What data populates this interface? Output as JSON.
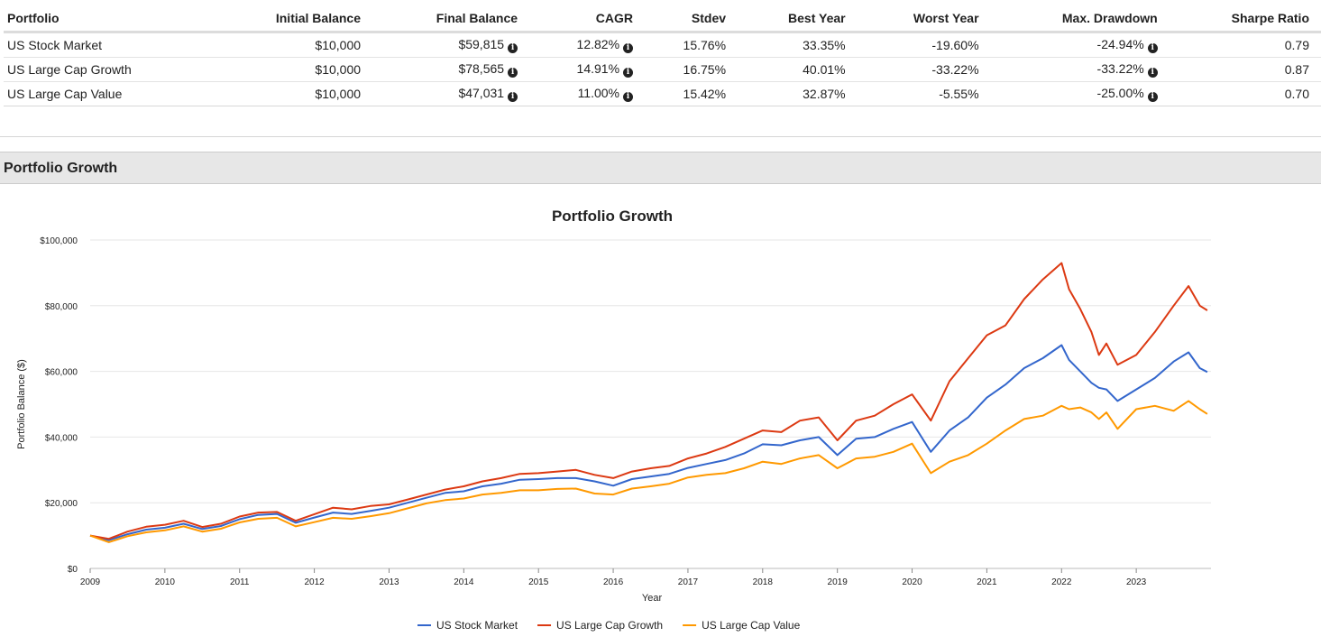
{
  "table": {
    "headers": [
      "Portfolio",
      "Initial Balance",
      "Final Balance",
      "CAGR",
      "Stdev",
      "Best Year",
      "Worst Year",
      "Max. Drawdown",
      "Sharpe Ratio"
    ],
    "rows": [
      {
        "portfolio": "US Stock Market",
        "initial": "$10,000",
        "final": "$59,815",
        "cagr": "12.82%",
        "stdev": "15.76%",
        "best": "33.35%",
        "worst": "-19.60%",
        "drawdown": "-24.94%",
        "sharpe": "0.79"
      },
      {
        "portfolio": "US Large Cap Growth",
        "initial": "$10,000",
        "final": "$78,565",
        "cagr": "14.91%",
        "stdev": "16.75%",
        "best": "40.01%",
        "worst": "-33.22%",
        "drawdown": "-33.22%",
        "sharpe": "0.87"
      },
      {
        "portfolio": "US Large Cap Value",
        "initial": "$10,000",
        "final": "$47,031",
        "cagr": "11.00%",
        "stdev": "15.42%",
        "best": "32.87%",
        "worst": "-5.55%",
        "drawdown": "-25.00%",
        "sharpe": "0.70"
      }
    ],
    "info_icon": "info-circle-icon"
  },
  "section": {
    "title": "Portfolio Growth"
  },
  "chart_data": {
    "type": "line",
    "title": "Portfolio Growth",
    "xlabel": "Year",
    "ylabel": "Portfolio Balance ($)",
    "xlim": [
      2009,
      2024
    ],
    "ylim": [
      0,
      100000
    ],
    "x_ticks": [
      "2009",
      "2010",
      "2011",
      "2012",
      "2013",
      "2014",
      "2015",
      "2016",
      "2017",
      "2018",
      "2019",
      "2020",
      "2021",
      "2022",
      "2023"
    ],
    "y_ticks": [
      "$0",
      "$20,000",
      "$40,000",
      "$60,000",
      "$80,000",
      "$100,000"
    ],
    "grid": true,
    "legend_position": "bottom",
    "series": [
      {
        "name": "US Stock Market",
        "color": "#3366cc",
        "points": [
          [
            2009.0,
            10000
          ],
          [
            2009.25,
            8600
          ],
          [
            2009.5,
            10400
          ],
          [
            2009.75,
            11800
          ],
          [
            2010.0,
            12400
          ],
          [
            2010.25,
            13600
          ],
          [
            2010.5,
            12000
          ],
          [
            2010.75,
            12900
          ],
          [
            2011.0,
            15000
          ],
          [
            2011.25,
            16300
          ],
          [
            2011.5,
            16600
          ],
          [
            2011.75,
            13900
          ],
          [
            2012.0,
            15500
          ],
          [
            2012.25,
            17000
          ],
          [
            2012.5,
            16600
          ],
          [
            2012.75,
            17500
          ],
          [
            2013.0,
            18500
          ],
          [
            2013.25,
            20000
          ],
          [
            2013.5,
            21500
          ],
          [
            2013.75,
            23000
          ],
          [
            2014.0,
            23500
          ],
          [
            2014.25,
            25000
          ],
          [
            2014.5,
            25800
          ],
          [
            2014.75,
            27000
          ],
          [
            2015.0,
            27200
          ],
          [
            2015.25,
            27500
          ],
          [
            2015.5,
            27500
          ],
          [
            2015.75,
            26500
          ],
          [
            2016.0,
            25200
          ],
          [
            2016.25,
            27200
          ],
          [
            2016.5,
            28000
          ],
          [
            2016.75,
            28800
          ],
          [
            2017.0,
            30600
          ],
          [
            2017.25,
            31800
          ],
          [
            2017.5,
            33000
          ],
          [
            2017.75,
            35000
          ],
          [
            2018.0,
            37800
          ],
          [
            2018.25,
            37500
          ],
          [
            2018.5,
            39000
          ],
          [
            2018.75,
            40000
          ],
          [
            2019.0,
            34500
          ],
          [
            2019.25,
            39500
          ],
          [
            2019.5,
            40000
          ],
          [
            2019.75,
            42500
          ],
          [
            2020.0,
            44600
          ],
          [
            2020.25,
            35500
          ],
          [
            2020.5,
            42000
          ],
          [
            2020.75,
            46000
          ],
          [
            2021.0,
            52000
          ],
          [
            2021.25,
            56000
          ],
          [
            2021.5,
            61000
          ],
          [
            2021.75,
            64000
          ],
          [
            2022.0,
            68000
          ],
          [
            2022.1,
            63500
          ],
          [
            2022.25,
            60000
          ],
          [
            2022.4,
            56500
          ],
          [
            2022.5,
            55000
          ],
          [
            2022.6,
            54500
          ],
          [
            2022.75,
            51000
          ],
          [
            2023.0,
            54500
          ],
          [
            2023.25,
            58000
          ],
          [
            2023.5,
            63000
          ],
          [
            2023.7,
            65800
          ],
          [
            2023.85,
            61000
          ],
          [
            2023.95,
            59815
          ]
        ]
      },
      {
        "name": "US Large Cap Growth",
        "color": "#dc3912",
        "points": [
          [
            2009.0,
            10000
          ],
          [
            2009.25,
            9000
          ],
          [
            2009.5,
            11200
          ],
          [
            2009.75,
            12700
          ],
          [
            2010.0,
            13300
          ],
          [
            2010.25,
            14500
          ],
          [
            2010.5,
            12600
          ],
          [
            2010.75,
            13600
          ],
          [
            2011.0,
            15800
          ],
          [
            2011.25,
            17000
          ],
          [
            2011.5,
            17200
          ],
          [
            2011.75,
            14500
          ],
          [
            2012.0,
            16500
          ],
          [
            2012.25,
            18500
          ],
          [
            2012.5,
            18000
          ],
          [
            2012.75,
            19000
          ],
          [
            2013.0,
            19500
          ],
          [
            2013.25,
            21000
          ],
          [
            2013.5,
            22500
          ],
          [
            2013.75,
            24000
          ],
          [
            2014.0,
            25000
          ],
          [
            2014.25,
            26500
          ],
          [
            2014.5,
            27500
          ],
          [
            2014.75,
            28800
          ],
          [
            2015.0,
            29000
          ],
          [
            2015.25,
            29500
          ],
          [
            2015.5,
            30000
          ],
          [
            2015.75,
            28500
          ],
          [
            2016.0,
            27500
          ],
          [
            2016.25,
            29500
          ],
          [
            2016.5,
            30500
          ],
          [
            2016.75,
            31200
          ],
          [
            2017.0,
            33500
          ],
          [
            2017.25,
            35000
          ],
          [
            2017.5,
            37000
          ],
          [
            2017.75,
            39500
          ],
          [
            2018.0,
            42000
          ],
          [
            2018.25,
            41500
          ],
          [
            2018.5,
            45000
          ],
          [
            2018.75,
            46000
          ],
          [
            2019.0,
            39000
          ],
          [
            2019.25,
            45000
          ],
          [
            2019.5,
            46500
          ],
          [
            2019.75,
            50000
          ],
          [
            2020.0,
            53000
          ],
          [
            2020.25,
            45000
          ],
          [
            2020.5,
            57000
          ],
          [
            2020.75,
            64000
          ],
          [
            2021.0,
            71000
          ],
          [
            2021.25,
            74000
          ],
          [
            2021.5,
            82000
          ],
          [
            2021.75,
            88000
          ],
          [
            2022.0,
            93000
          ],
          [
            2022.1,
            85000
          ],
          [
            2022.25,
            79000
          ],
          [
            2022.4,
            72000
          ],
          [
            2022.5,
            65000
          ],
          [
            2022.6,
            68500
          ],
          [
            2022.75,
            62000
          ],
          [
            2023.0,
            65000
          ],
          [
            2023.25,
            72000
          ],
          [
            2023.5,
            80000
          ],
          [
            2023.7,
            86000
          ],
          [
            2023.85,
            80000
          ],
          [
            2023.95,
            78565
          ]
        ]
      },
      {
        "name": "US Large Cap Value",
        "color": "#ff9900",
        "points": [
          [
            2009.0,
            10000
          ],
          [
            2009.25,
            8000
          ],
          [
            2009.5,
            9800
          ],
          [
            2009.75,
            11000
          ],
          [
            2010.0,
            11600
          ],
          [
            2010.25,
            12800
          ],
          [
            2010.5,
            11200
          ],
          [
            2010.75,
            12100
          ],
          [
            2011.0,
            14000
          ],
          [
            2011.25,
            15100
          ],
          [
            2011.5,
            15400
          ],
          [
            2011.75,
            12800
          ],
          [
            2012.0,
            14100
          ],
          [
            2012.25,
            15400
          ],
          [
            2012.5,
            15100
          ],
          [
            2012.75,
            15900
          ],
          [
            2013.0,
            16800
          ],
          [
            2013.25,
            18300
          ],
          [
            2013.5,
            19800
          ],
          [
            2013.75,
            20800
          ],
          [
            2014.0,
            21300
          ],
          [
            2014.25,
            22500
          ],
          [
            2014.5,
            23000
          ],
          [
            2014.75,
            23800
          ],
          [
            2015.0,
            23800
          ],
          [
            2015.25,
            24200
          ],
          [
            2015.5,
            24300
          ],
          [
            2015.75,
            22800
          ],
          [
            2016.0,
            22500
          ],
          [
            2016.25,
            24300
          ],
          [
            2016.5,
            25000
          ],
          [
            2016.75,
            25800
          ],
          [
            2017.0,
            27700
          ],
          [
            2017.25,
            28500
          ],
          [
            2017.5,
            29000
          ],
          [
            2017.75,
            30500
          ],
          [
            2018.0,
            32500
          ],
          [
            2018.25,
            31800
          ],
          [
            2018.5,
            33500
          ],
          [
            2018.75,
            34500
          ],
          [
            2019.0,
            30500
          ],
          [
            2019.25,
            33500
          ],
          [
            2019.5,
            34000
          ],
          [
            2019.75,
            35500
          ],
          [
            2020.0,
            38000
          ],
          [
            2020.25,
            29000
          ],
          [
            2020.5,
            32500
          ],
          [
            2020.75,
            34500
          ],
          [
            2021.0,
            38000
          ],
          [
            2021.25,
            42000
          ],
          [
            2021.5,
            45500
          ],
          [
            2021.75,
            46500
          ],
          [
            2022.0,
            49500
          ],
          [
            2022.1,
            48500
          ],
          [
            2022.25,
            49000
          ],
          [
            2022.4,
            47500
          ],
          [
            2022.5,
            45500
          ],
          [
            2022.6,
            47500
          ],
          [
            2022.75,
            42500
          ],
          [
            2023.0,
            48500
          ],
          [
            2023.25,
            49500
          ],
          [
            2023.5,
            48000
          ],
          [
            2023.7,
            51000
          ],
          [
            2023.85,
            48500
          ],
          [
            2023.95,
            47031
          ]
        ]
      }
    ]
  }
}
